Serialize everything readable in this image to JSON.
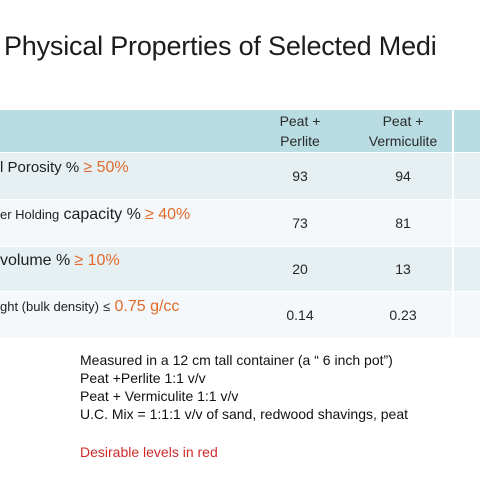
{
  "title": "Physical Properties of Selected Medi",
  "table": {
    "headers": {
      "pp_line1": "Peat +",
      "pp_line2": "Perlite",
      "pv_line1": "Peat +",
      "pv_line2": "Vermiculite"
    },
    "rows": [
      {
        "label_text": "l Porosity %",
        "label_target": "≥ 50%",
        "peat_perlite": "93",
        "peat_vermiculite": "94"
      },
      {
        "label_text_a": "er  Holding",
        "label_text_b": "capacity %",
        "label_target": "≥ 40%",
        "peat_perlite": "73",
        "peat_vermiculite": "81"
      },
      {
        "label_text": "volume  %",
        "label_target": "≥ 10%",
        "peat_perlite": "20",
        "peat_vermiculite": "13"
      },
      {
        "label_text_a": "ght (bulk density)",
        "label_sym": "≤",
        "label_target": "0.75 g/cc",
        "peat_perlite": "0.14",
        "peat_vermiculite": "0.23"
      }
    ]
  },
  "notes": [
    "Measured in a 12 cm tall container (a “ 6 inch pot”)",
    "Peat +Perlite 1:1 v/v",
    "Peat + Vermiculite 1:1 v/v",
    "U.C. Mix = 1:1:1  v/v of sand, redwood shavings, peat"
  ],
  "desirable_note": "Desirable levels in red",
  "colors": {
    "header_row": "#b9dde3",
    "row_dark": "#e6f0f3",
    "row_light": "#f4f8fa",
    "target_text": "#e06a2b",
    "desirable_text": "#d02a2a"
  }
}
